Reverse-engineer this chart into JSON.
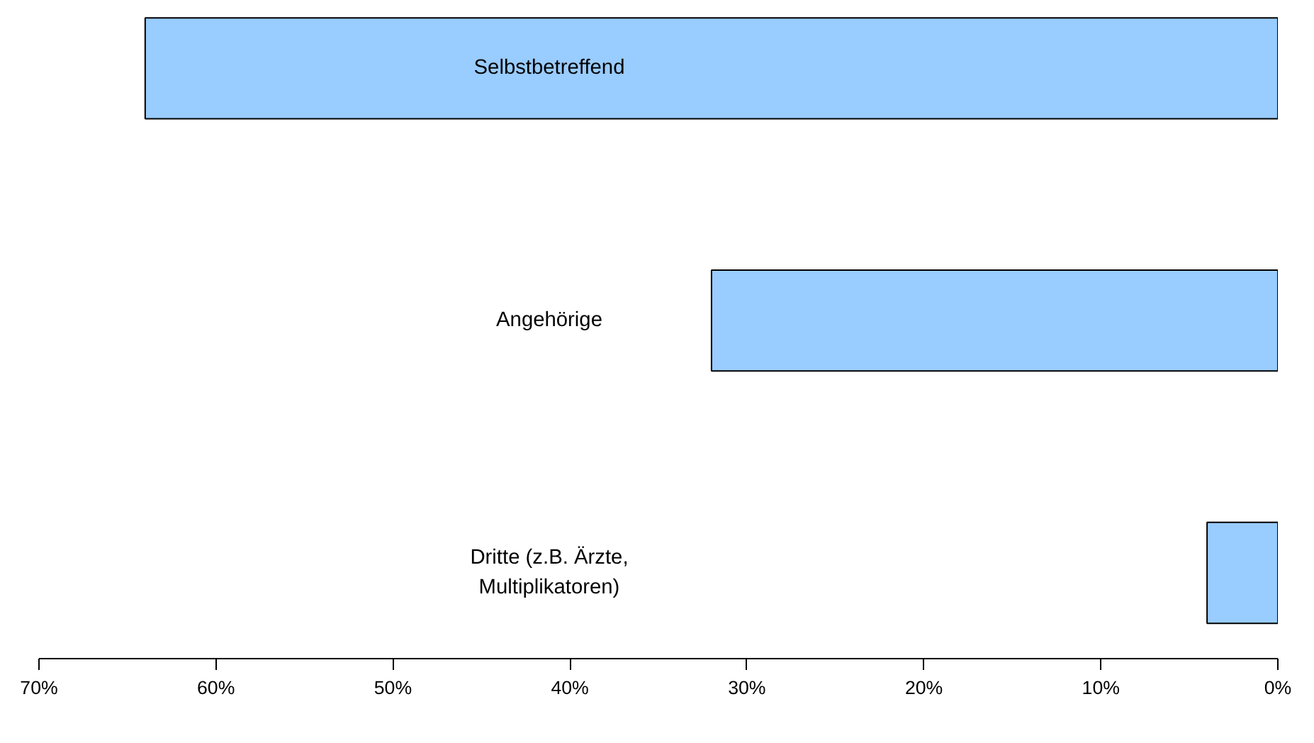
{
  "chart_data": {
    "type": "bar",
    "orientation": "horizontal",
    "categories": [
      "Selbstbetreffend",
      "Angehörige",
      "Dritte (z.B. Ärzte,\nMultiplikatoren)"
    ],
    "values": [
      64,
      32,
      4
    ],
    "color": "#99ccff",
    "xlim": [
      70,
      0
    ],
    "xticks": [
      {
        "value": 70,
        "label": "70%"
      },
      {
        "value": 60,
        "label": "60%"
      },
      {
        "value": 50,
        "label": "50%"
      },
      {
        "value": 40,
        "label": "40%"
      },
      {
        "value": 30,
        "label": "30%"
      },
      {
        "value": 20,
        "label": "20%"
      },
      {
        "value": 10,
        "label": "10%"
      },
      {
        "value": 0,
        "label": "0%"
      }
    ],
    "grid": false
  }
}
